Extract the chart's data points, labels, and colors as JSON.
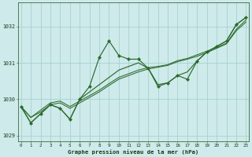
{
  "x": [
    0,
    1,
    2,
    3,
    4,
    5,
    6,
    7,
    8,
    9,
    10,
    11,
    12,
    13,
    14,
    15,
    16,
    17,
    18,
    19,
    20,
    21,
    22,
    23
  ],
  "y_main": [
    1029.8,
    1029.35,
    1029.6,
    1029.85,
    1029.75,
    1029.45,
    1030.0,
    1030.35,
    1031.15,
    1031.6,
    1031.2,
    1031.1,
    1031.1,
    1030.85,
    1030.35,
    1030.45,
    1030.65,
    1030.55,
    1031.05,
    1031.3,
    1031.45,
    1031.6,
    1032.05,
    1032.25
  ],
  "y_trend1": [
    1029.8,
    1029.35,
    1029.6,
    1029.85,
    1029.75,
    1029.45,
    1030.0,
    1030.2,
    1030.4,
    1030.6,
    1030.8,
    1030.9,
    1031.0,
    1030.85,
    1030.4,
    1030.45,
    1030.65,
    1030.75,
    1031.05,
    1031.3,
    1031.45,
    1031.6,
    1032.05,
    1032.25
  ],
  "y_trend2": [
    1029.8,
    1029.5,
    1029.65,
    1029.85,
    1029.9,
    1029.75,
    1029.9,
    1030.05,
    1030.2,
    1030.38,
    1030.55,
    1030.65,
    1030.75,
    1030.83,
    1030.88,
    1030.93,
    1031.03,
    1031.1,
    1031.18,
    1031.28,
    1031.4,
    1031.52,
    1031.88,
    1032.12
  ],
  "y_trend3": [
    1029.8,
    1029.5,
    1029.7,
    1029.9,
    1029.95,
    1029.8,
    1029.95,
    1030.1,
    1030.25,
    1030.43,
    1030.6,
    1030.7,
    1030.8,
    1030.87,
    1030.9,
    1030.95,
    1031.06,
    1031.12,
    1031.22,
    1031.32,
    1031.42,
    1031.54,
    1031.92,
    1032.18
  ],
  "line_color": "#2d6a2d",
  "bg_color": "#ceeaea",
  "grid_color": "#a0cccc",
  "xlabel": "Graphe pression niveau de la mer (hPa)",
  "ylim": [
    1028.85,
    1032.65
  ],
  "yticks": [
    1029,
    1030,
    1031,
    1032
  ],
  "xticks": [
    0,
    1,
    2,
    3,
    4,
    5,
    6,
    7,
    8,
    9,
    10,
    11,
    12,
    13,
    14,
    15,
    16,
    17,
    18,
    19,
    20,
    21,
    22,
    23
  ]
}
